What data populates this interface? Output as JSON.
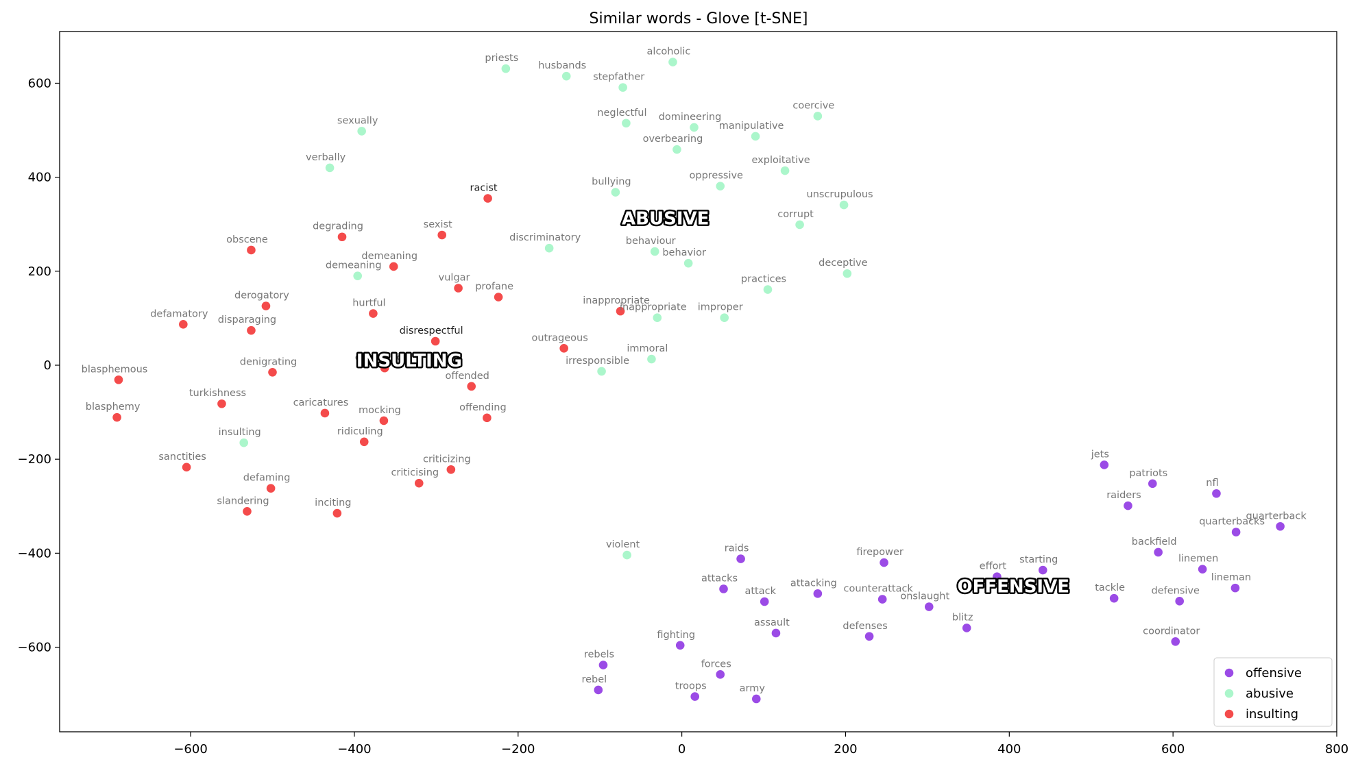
{
  "chart_data": {
    "type": "scatter",
    "title": "Similar words - Glove [t-SNE]",
    "xlabel": "",
    "ylabel": "",
    "xlim": [
      -760,
      800
    ],
    "ylim": [
      -780,
      710
    ],
    "xticks": [
      -600,
      -400,
      -200,
      0,
      200,
      400,
      600,
      800
    ],
    "yticks": [
      -600,
      -400,
      -200,
      0,
      200,
      400,
      600
    ],
    "grid": false,
    "legend_placement": "bottom-right",
    "colors": {
      "offensive": "#8a2be2",
      "abusive": "#9cf5c2",
      "insulting": "#f22b2b"
    },
    "cluster_labels": [
      {
        "text": "ABUSIVE",
        "x": -20,
        "y": 313
      },
      {
        "text": "INSULTING",
        "x": -333,
        "y": 10
      },
      {
        "text": "OFFENSIVE",
        "x": 405,
        "y": -470
      }
    ],
    "series": [
      {
        "name": "offensive",
        "points": [
          {
            "x": 516,
            "y": -212,
            "label": "jets"
          },
          {
            "x": 575,
            "y": -252,
            "label": "patriots"
          },
          {
            "x": 545,
            "y": -299,
            "label": "raiders"
          },
          {
            "x": 653,
            "y": -273,
            "label": "nfl"
          },
          {
            "x": 731,
            "y": -343,
            "label": "quarterback"
          },
          {
            "x": 677,
            "y": -355,
            "label": "quarterbacks"
          },
          {
            "x": 582,
            "y": -398,
            "label": "backfield"
          },
          {
            "x": 636,
            "y": -434,
            "label": "linemen"
          },
          {
            "x": 676,
            "y": -474,
            "label": "lineman"
          },
          {
            "x": 528,
            "y": -496,
            "label": "tackle"
          },
          {
            "x": 608,
            "y": -502,
            "label": "defensive"
          },
          {
            "x": 603,
            "y": -588,
            "label": "coordinator"
          },
          {
            "x": 441,
            "y": -436,
            "label": "starting"
          },
          {
            "x": 385,
            "y": -450,
            "label": "effort"
          },
          {
            "x": 247,
            "y": -420,
            "label": "firepower"
          },
          {
            "x": 245,
            "y": -498,
            "label": "counterattack"
          },
          {
            "x": 302,
            "y": -514,
            "label": "onslaught"
          },
          {
            "x": 348,
            "y": -559,
            "label": "blitz"
          },
          {
            "x": 229,
            "y": -577,
            "label": "defenses"
          },
          {
            "x": 166,
            "y": -486,
            "label": "attacking"
          },
          {
            "x": 101,
            "y": -503,
            "label": "attack"
          },
          {
            "x": 72,
            "y": -412,
            "label": "raids"
          },
          {
            "x": 51,
            "y": -476,
            "label": "attacks"
          },
          {
            "x": 115,
            "y": -570,
            "label": "assault"
          },
          {
            "x": -2,
            "y": -596,
            "label": "fighting"
          },
          {
            "x": 47,
            "y": -658,
            "label": "forces"
          },
          {
            "x": 16,
            "y": -705,
            "label": "troops"
          },
          {
            "x": 91,
            "y": -710,
            "label": "army"
          },
          {
            "x": -96,
            "y": -638,
            "label": "rebels"
          },
          {
            "x": -102,
            "y": -691,
            "label": "rebel"
          }
        ]
      },
      {
        "name": "abusive",
        "points": [
          {
            "x": -215,
            "y": 631,
            "label": "priests"
          },
          {
            "x": -141,
            "y": 615,
            "label": "husbands"
          },
          {
            "x": -72,
            "y": 591,
            "label": "stepfather"
          },
          {
            "x": -11,
            "y": 645,
            "label": "alcoholic"
          },
          {
            "x": -68,
            "y": 515,
            "label": "neglectful"
          },
          {
            "x": 15,
            "y": 506,
            "label": "domineering"
          },
          {
            "x": 90,
            "y": 487,
            "label": "manipulative"
          },
          {
            "x": 166,
            "y": 530,
            "label": "coercive"
          },
          {
            "x": -6,
            "y": 459,
            "label": "overbearing"
          },
          {
            "x": 126,
            "y": 414,
            "label": "exploitative"
          },
          {
            "x": 47,
            "y": 381,
            "label": "oppressive"
          },
          {
            "x": -81,
            "y": 368,
            "label": "bullying"
          },
          {
            "x": 198,
            "y": 341,
            "label": "unscrupulous"
          },
          {
            "x": 144,
            "y": 299,
            "label": "corrupt"
          },
          {
            "x": -391,
            "y": 498,
            "label": "sexually"
          },
          {
            "x": -430,
            "y": 420,
            "label": "verbally"
          },
          {
            "x": -162,
            "y": 249,
            "label": "discriminatory"
          },
          {
            "x": -33,
            "y": 242,
            "label": "behaviour"
          },
          {
            "x": 8,
            "y": 217,
            "label": "behavior"
          },
          {
            "x": 202,
            "y": 195,
            "label": "deceptive"
          },
          {
            "x": 105,
            "y": 161,
            "label": "practices"
          },
          {
            "x": -396,
            "y": 190,
            "label": "demeaning"
          },
          {
            "x": -30,
            "y": 101,
            "label": "inappropriate"
          },
          {
            "x": 52,
            "y": 101,
            "label": "improper"
          },
          {
            "x": -37,
            "y": 13,
            "label": "immoral"
          },
          {
            "x": -98,
            "y": -13,
            "label": "irresponsible"
          },
          {
            "x": -67,
            "y": -404,
            "label": "violent"
          },
          {
            "x": -535,
            "y": -165,
            "label": "insulting"
          }
        ]
      },
      {
        "name": "insulting",
        "points": [
          {
            "x": -237,
            "y": 355,
            "label": "racist",
            "dark": true
          },
          {
            "x": -293,
            "y": 277,
            "label": "sexist"
          },
          {
            "x": -415,
            "y": 273,
            "label": "degrading"
          },
          {
            "x": -526,
            "y": 245,
            "label": "obscene"
          },
          {
            "x": -352,
            "y": 210,
            "label": "demeaning"
          },
          {
            "x": -273,
            "y": 164,
            "label": "vulgar"
          },
          {
            "x": -224,
            "y": 145,
            "label": "profane"
          },
          {
            "x": -508,
            "y": 126,
            "label": "derogatory"
          },
          {
            "x": -377,
            "y": 110,
            "label": "hurtful"
          },
          {
            "x": -75,
            "y": 115,
            "label": "inappropriate"
          },
          {
            "x": -609,
            "y": 87,
            "label": "defamatory"
          },
          {
            "x": -526,
            "y": 74,
            "label": "disparaging"
          },
          {
            "x": -301,
            "y": 51,
            "label": "disrespectful",
            "dark": true
          },
          {
            "x": -144,
            "y": 36,
            "label": "outrageous"
          },
          {
            "x": -363,
            "y": -6,
            "label": "disrespect"
          },
          {
            "x": -500,
            "y": -15,
            "label": "denigrating"
          },
          {
            "x": -688,
            "y": -31,
            "label": "blasphemous"
          },
          {
            "x": -257,
            "y": -45,
            "label": "offended"
          },
          {
            "x": -562,
            "y": -82,
            "label": "turkishness"
          },
          {
            "x": -436,
            "y": -102,
            "label": "caricatures"
          },
          {
            "x": -364,
            "y": -118,
            "label": "mocking"
          },
          {
            "x": -238,
            "y": -112,
            "label": "offending"
          },
          {
            "x": -690,
            "y": -111,
            "label": "blasphemy"
          },
          {
            "x": -388,
            "y": -163,
            "label": "ridiculing"
          },
          {
            "x": -605,
            "y": -217,
            "label": "sanctities"
          },
          {
            "x": -282,
            "y": -222,
            "label": "criticizing"
          },
          {
            "x": -321,
            "y": -251,
            "label": "criticising"
          },
          {
            "x": -502,
            "y": -262,
            "label": "defaming"
          },
          {
            "x": -531,
            "y": -311,
            "label": "slandering"
          },
          {
            "x": -421,
            "y": -315,
            "label": "inciting"
          }
        ]
      }
    ]
  }
}
